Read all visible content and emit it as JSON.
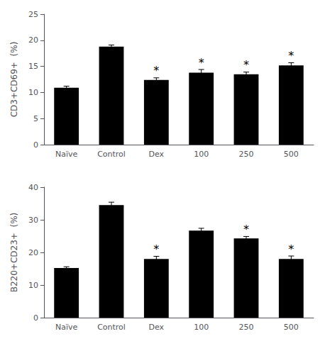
{
  "chart_data": [
    {
      "type": "bar",
      "categories": [
        "Naïve",
        "Control",
        "Dex",
        "100",
        "250",
        "500"
      ],
      "values": [
        10.9,
        18.8,
        12.4,
        13.8,
        13.5,
        15.2
      ],
      "errors": [
        0.3,
        0.3,
        0.4,
        0.6,
        0.4,
        0.5
      ],
      "ylabel": "CD3+CD69+  (%)",
      "ylim": [
        0,
        25
      ],
      "yticks": [
        0,
        5,
        10,
        15,
        20,
        25
      ],
      "color": "#000000",
      "grid": false,
      "annotations": [
        {
          "x": "Dex",
          "text": "*"
        },
        {
          "x": "100",
          "text": "*"
        },
        {
          "x": "250",
          "text": "*"
        },
        {
          "x": "500",
          "text": "*"
        }
      ]
    },
    {
      "type": "bar",
      "categories": [
        "Naïve",
        "Control",
        "Dex",
        "100",
        "250",
        "500"
      ],
      "values": [
        15.2,
        34.5,
        18.0,
        26.7,
        24.3,
        18.0
      ],
      "errors": [
        0.4,
        0.9,
        0.8,
        0.7,
        0.6,
        0.9
      ],
      "ylabel": "B220+CD23+  (%)",
      "ylim": [
        0,
        40
      ],
      "yticks": [
        0,
        10,
        20,
        30,
        40
      ],
      "color": "#000000",
      "grid": false,
      "annotations": [
        {
          "x": "Dex",
          "text": "*"
        },
        {
          "x": "250",
          "text": "*"
        },
        {
          "x": "500",
          "text": "*"
        }
      ]
    }
  ]
}
